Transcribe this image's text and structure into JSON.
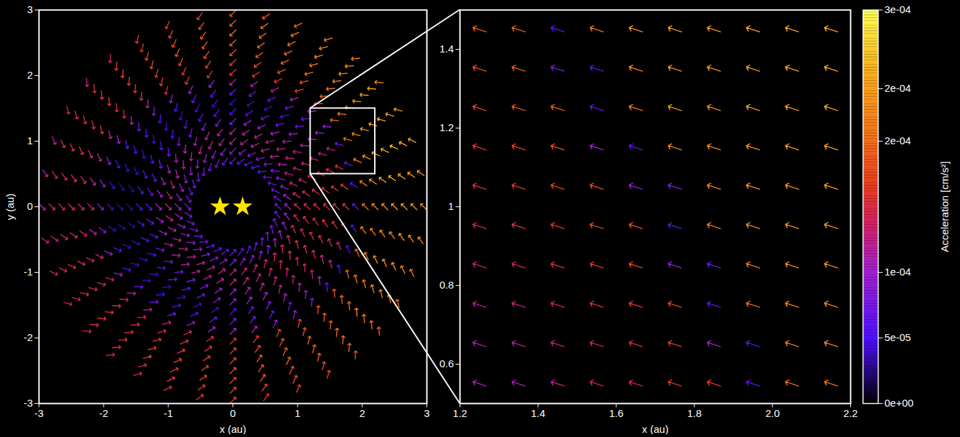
{
  "chart_data": [
    {
      "type": "vector",
      "xlabel": "x (au)",
      "ylabel": "y (au)",
      "xlim": [
        -3,
        3
      ],
      "ylim": [
        -3,
        3
      ],
      "xticks": [
        -3,
        -2,
        -1,
        0,
        1,
        2,
        3
      ],
      "yticks": [
        -3,
        -2,
        -1,
        0,
        1,
        2,
        3
      ],
      "stars": {
        "x": [
          -0.2,
          0.15
        ],
        "y": [
          0,
          0
        ]
      },
      "r": [
        0.7,
        0.85,
        1.0,
        1.15,
        1.3,
        1.45,
        1.6,
        1.75,
        1.9,
        2.05,
        2.2,
        2.35,
        2.5,
        2.65,
        2.8,
        2.95
      ],
      "azimuth": [
        0,
        10,
        20,
        30,
        40,
        50,
        60,
        70,
        80,
        90,
        100,
        110,
        120,
        130,
        140,
        150,
        160,
        170,
        180,
        190,
        200,
        210,
        220,
        230,
        240,
        250,
        260,
        270,
        280,
        290,
        300,
        310,
        320,
        330,
        340,
        350
      ],
      "directions": [
        135,
        145,
        155,
        165,
        175,
        185,
        195,
        205,
        215,
        225,
        235,
        245,
        255,
        265,
        275,
        285,
        295,
        305,
        315,
        325,
        335,
        345,
        355,
        5,
        15,
        25,
        35,
        45,
        55,
        65,
        75,
        85,
        95,
        105,
        115,
        125
      ],
      "values": [
        [
          7e-05,
          7e-05,
          7e-05,
          6e-05,
          6e-05,
          6e-05,
          6e-05,
          6e-05,
          6e-05,
          6e-05,
          7e-05,
          7e-05,
          7e-05,
          7e-05,
          7e-05,
          7e-05,
          7e-05,
          7e-05,
          8e-05,
          8e-05,
          7e-05,
          7e-05,
          7e-05,
          7e-05,
          6e-05,
          6e-05,
          6e-05,
          6e-05,
          6e-05,
          6e-05,
          7e-05,
          7e-05,
          7e-05,
          7e-05,
          7e-05,
          7e-05
        ],
        [
          0.0001,
          0.0001,
          9e-05,
          9e-05,
          8e-05,
          8e-05,
          8e-05,
          8e-05,
          8e-05,
          8e-05,
          9e-05,
          9e-05,
          9e-05,
          9e-05,
          9e-05,
          9e-05,
          0.0001,
          0.0001,
          0.0001,
          0.0001,
          0.0001,
          0.0001,
          9e-05,
          9e-05,
          8e-05,
          8e-05,
          8e-05,
          8e-05,
          8e-05,
          9e-05,
          9e-05,
          9e-05,
          0.0001,
          0.0001,
          0.0001,
          0.0001
        ],
        [
          0.00014,
          0.00014,
          0.00013,
          0.00013,
          0.00012,
          0.00012,
          0.00012,
          0.00012,
          0.00012,
          0.00012,
          0.00012,
          0.00012,
          0.00012,
          0.00012,
          0.00012,
          0.00012,
          0.00013,
          0.00013,
          0.00013,
          0.00013,
          0.00012,
          0.00012,
          0.00012,
          0.00012,
          0.00012,
          0.00012,
          0.00012,
          0.00013,
          0.00013,
          0.00013,
          0.00013,
          0.00014,
          0.00014,
          0.00014,
          0.00014,
          0.00014
        ],
        [
          0.00015,
          0.00015,
          0.00014,
          0.00013,
          0.00013,
          0.00012,
          0.00012,
          0.00012,
          0.00011,
          0.00011,
          0.00011,
          0.00011,
          0.00011,
          0.00011,
          0.00011,
          0.0001,
          0.0001,
          0.0001,
          0.0001,
          0.0001,
          0.0001,
          0.00011,
          0.00011,
          0.00011,
          0.00012,
          0.00012,
          0.00012,
          0.00013,
          0.00013,
          0.00013,
          0.00014,
          0.00014,
          0.00015,
          0.00015,
          0.00015,
          0.00015
        ],
        [
          0.00015,
          0.00015,
          0.00014,
          0.00013,
          0.00012,
          0.00011,
          0.0001,
          9e-05,
          9e-05,
          8e-05,
          8e-05,
          8e-05,
          7e-05,
          7e-05,
          7e-05,
          6e-05,
          6e-05,
          6e-05,
          6e-05,
          6e-05,
          6e-05,
          7e-05,
          7e-05,
          7e-05,
          8e-05,
          8e-05,
          9e-05,
          0.0001,
          0.00011,
          0.00012,
          0.00013,
          0.00013,
          0.00014,
          0.00014,
          0.00015,
          0.00015
        ],
        [
          0.00015,
          0.00015,
          0.00014,
          0.00013,
          0.00011,
          9e-05,
          7e-05,
          6e-05,
          5e-05,
          5e-05,
          5e-05,
          5e-05,
          5e-05,
          5e-05,
          5e-05,
          5e-05,
          5e-05,
          5e-05,
          5e-05,
          5e-05,
          5e-05,
          5e-05,
          5e-05,
          6e-05,
          6e-05,
          7e-05,
          8e-05,
          9e-05,
          0.0001,
          0.00011,
          0.00012,
          0.00013,
          0.00014,
          0.00014,
          0.00015,
          0.00015
        ],
        [
          0.00015,
          0.00015,
          0.00014,
          0.00012,
          0.0001,
          7e-05,
          5e-05,
          4e-05,
          4e-05,
          4e-05,
          4e-05,
          4e-05,
          4e-05,
          4e-05,
          4e-05,
          4e-05,
          4e-05,
          3e-05,
          3e-05,
          3e-05,
          4e-05,
          4e-05,
          4e-05,
          4e-05,
          4e-05,
          4e-05,
          4e-05,
          5e-05,
          6e-05,
          8e-05,
          0.0001,
          0.00011,
          0.00012,
          0.00013,
          0.00014,
          0.00015
        ],
        [
          0.00016,
          0.00016,
          0.00015,
          0.00013,
          0.0001,
          7e-05,
          6e-05,
          6e-05,
          6e-05,
          6e-05,
          6e-05,
          6e-05,
          5e-05,
          5e-05,
          5e-05,
          5e-05,
          4e-05,
          3e-05,
          3e-05,
          3e-05,
          4e-05,
          4e-05,
          4e-05,
          5e-05,
          5e-05,
          5e-05,
          6e-05,
          7e-05,
          7e-05,
          6e-05,
          6e-05,
          8e-05,
          0.0001,
          0.00012,
          0.00014,
          0.00015
        ],
        [
          6e-05,
          5e-05,
          6e-05,
          7e-05,
          9e-05,
          0.0001,
          0.00011,
          0.00011,
          0.00011,
          0.00011,
          0.0001,
          0.0001,
          9e-05,
          8e-05,
          7e-05,
          6e-05,
          5e-05,
          4e-05,
          4e-05,
          4e-05,
          5e-05,
          5e-05,
          6e-05,
          7e-05,
          8e-05,
          9e-05,
          0.0001,
          0.00011,
          0.00011,
          0.0001,
          9e-05,
          8e-05,
          6e-05,
          5e-05,
          5e-05,
          5e-05
        ],
        [
          0.0002,
          0.00021,
          0.00021,
          0.0002,
          0.00019,
          0.00018,
          0.00017,
          0.00016,
          0.00016,
          0.00016,
          0.00015,
          0.00015,
          0.00014,
          0.00012,
          0.00011,
          0.0001,
          9e-05,
          8e-05,
          8e-05,
          8e-05,
          9e-05,
          0.0001,
          0.00011,
          0.00012,
          0.00013,
          0.00014,
          0.00015,
          0.00016,
          0.00016,
          0.00017,
          0.00017,
          0.00018,
          0.00018,
          0.00019,
          0.00019,
          0.0002
        ],
        [
          0.00022,
          0.00023,
          0.00023,
          0.00022,
          0.00021,
          0.0002,
          0.00019,
          0.00018,
          0.00018,
          0.00017,
          0.00017,
          0.00016,
          0.00016,
          0.00015,
          0.00014,
          0.00013,
          0.00012,
          0.00012,
          0.00012,
          0.00012,
          0.00013,
          0.00013,
          0.00014,
          0.00014,
          0.00015,
          0.00016,
          0.00016,
          0.00017,
          0.00017,
          0.00018,
          0.00018,
          0.00019,
          0.00019,
          0.0002,
          0.00021,
          0.00021
        ],
        [
          0.00023,
          0.00024,
          0.00024,
          0.00023,
          0.00022,
          0.00021,
          0.0002,
          0.00019,
          0.00019,
          0.00018,
          0.00018,
          0.00017,
          0.00016,
          0.00016,
          0.00015,
          0.00015,
          0.00014,
          0.00014,
          0.00014,
          0.00014,
          0.00014,
          0.00015,
          0.00015,
          0.00015,
          0.00016,
          0.00016,
          0.00017,
          0.00017,
          0.00018,
          0.00018,
          0.00019,
          0.00019,
          0.0002,
          0.00021,
          0.00022,
          0.00022
        ],
        [
          0.00024,
          0.00025,
          0.00025,
          0.00024,
          0.00023,
          0.00022,
          0.00021,
          0.0002,
          0.0002,
          0.00019,
          0.00018,
          0.00018,
          0.00017,
          0.00016,
          0.00016,
          0.00015,
          0.00015,
          0.00015,
          0.00015,
          0.00015,
          0.00015,
          0.00015,
          0.00016,
          0.00016,
          0.00016,
          0.00017,
          0.00017,
          0.00018,
          0.00018,
          0.00019,
          0.00019,
          0.0002,
          0.00021,
          0.00022,
          0.00023,
          0.00023
        ],
        [
          0.00024,
          0.00025,
          0.00026,
          0.00025,
          0.00024,
          0.00023,
          0.00022,
          0.00021,
          0.0002,
          0.0002,
          0.00019,
          0.00018,
          0.00017,
          0.00017,
          0.00016,
          0.00015,
          0.00015,
          0.00014,
          0.00014,
          0.00014,
          0.00015,
          0.00015,
          0.00015,
          0.00016,
          0.00016,
          0.00016,
          0.00017,
          0.00017,
          0.00018,
          0.00018,
          0.00019,
          0.0002,
          0.00021,
          0.00022,
          0.00023,
          0.00023
        ],
        [
          0.00023,
          0.00024,
          0.00025,
          0.00025,
          0.00024,
          0.00023,
          0.00022,
          0.00021,
          0.0002,
          0.00019,
          0.00018,
          0.00017,
          0.00016,
          0.00016,
          0.00015,
          0.00014,
          0.00014,
          0.00013,
          0.00013,
          0.00013,
          0.00014,
          0.00014,
          0.00015,
          0.00015,
          0.00015,
          0.00016,
          0.00016,
          0.00017,
          0.00017,
          0.00018,
          0.00018,
          0.00019,
          0.0002,
          0.00021,
          0.00022,
          0.00022
        ],
        [
          0.00022,
          0.00023,
          0.00024,
          0.00024,
          0.00023,
          0.00022,
          0.00021,
          0.0002,
          0.00019,
          0.00018,
          0.00017,
          0.00016,
          0.00015,
          0.00014,
          0.00013,
          0.00013,
          0.00012,
          0.00012,
          0.00012,
          0.00012,
          0.00013,
          0.00013,
          0.00014,
          0.00014,
          0.00014,
          0.00015,
          0.00015,
          0.00016,
          0.00016,
          0.00017,
          0.00017,
          0.00018,
          0.00019,
          0.0002,
          0.00021,
          0.00021
        ]
      ]
    },
    {
      "type": "vector",
      "xlabel": "x (au)",
      "xlim": [
        1.2,
        2.2
      ],
      "ylim": [
        0.5,
        1.5
      ],
      "xticks": [
        1.2,
        1.4,
        1.6,
        1.8,
        {
          "value": 2,
          "label": "2.0"
        },
        2.2
      ],
      "yticks": [
        0.6,
        0.8,
        1,
        1.2,
        1.4
      ],
      "x": [
        1.25,
        1.35,
        1.45,
        1.55,
        1.65,
        1.75,
        1.85,
        1.95,
        2.05,
        2.15
      ],
      "y": [
        1.45,
        1.35,
        1.25,
        1.15,
        1.05,
        0.95,
        0.85,
        0.75,
        0.65,
        0.55
      ],
      "direction": 162,
      "values": [
        [
          0.00019,
          0.00019,
          6e-05,
          0.00021,
          0.00023,
          0.00024,
          0.00024,
          0.00025,
          0.00025,
          0.00025
        ],
        [
          0.00018,
          0.00019,
          8e-05,
          6e-05,
          0.00022,
          0.00023,
          0.00024,
          0.00024,
          0.00025,
          0.00025
        ],
        [
          0.00017,
          0.00018,
          0.00019,
          6e-05,
          0.00021,
          0.00023,
          0.00023,
          0.00024,
          0.00024,
          0.00025
        ],
        [
          0.00016,
          0.00017,
          0.00018,
          0.0001,
          6e-05,
          0.00022,
          0.00023,
          0.00023,
          0.00024,
          0.00024
        ],
        [
          0.00015,
          0.00016,
          0.00017,
          0.00018,
          9e-05,
          8e-05,
          0.00022,
          0.00023,
          0.00023,
          0.00024
        ],
        [
          0.00014,
          0.00015,
          0.00016,
          0.00017,
          0.00018,
          6e-05,
          0.00021,
          0.00022,
          0.00023,
          0.00023
        ],
        [
          0.00013,
          0.00014,
          0.00015,
          0.00016,
          0.00017,
          9e-05,
          7e-05,
          0.00021,
          0.00022,
          0.00023
        ],
        [
          0.00012,
          0.00013,
          0.00014,
          0.00015,
          0.00016,
          0.00017,
          6e-05,
          0.0002,
          0.00022,
          0.00022
        ],
        [
          0.00011,
          0.00012,
          0.00013,
          0.00014,
          0.00015,
          0.00016,
          0.0001,
          6e-05,
          0.00021,
          0.00022
        ],
        [
          0.00011,
          0.00011,
          0.00012,
          0.00013,
          0.00014,
          0.00016,
          0.00017,
          6e-05,
          0.0002,
          0.00021
        ]
      ],
      "colorbar": {
        "label": "Acceleration [cm/s²]",
        "range": [
          0,
          0.0003
        ],
        "ticks": [
          {
            "value": 0,
            "label": "0e+00"
          },
          {
            "value": 5e-05,
            "label": "5e-05"
          },
          {
            "value": 0.0001,
            "label": "1e-04"
          },
          {
            "value": 0.0002,
            "label": "2e-04"
          },
          {
            "value": 0.00024,
            "label": "2e-04"
          },
          {
            "value": 0.0003,
            "label": "3e-04"
          }
        ]
      }
    }
  ]
}
